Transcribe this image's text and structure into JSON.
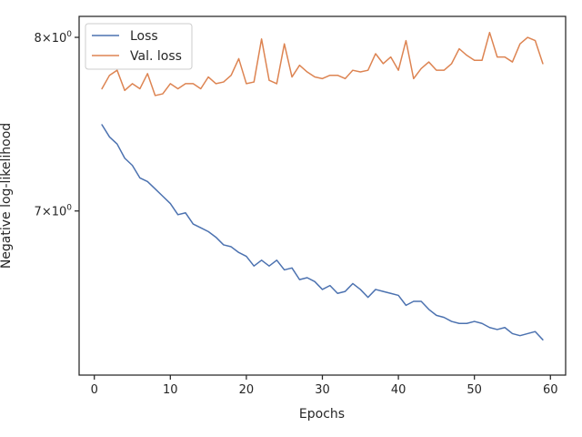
{
  "chart_data": {
    "type": "line",
    "title": "",
    "xlabel": "Epochs",
    "ylabel": "Negative log-likelihood",
    "xlim": [
      -2,
      62
    ],
    "ylim": [
      6.17,
      8.13
    ],
    "y_scale": "log",
    "x_ticks": [
      0,
      10,
      20,
      30,
      40,
      50,
      60
    ],
    "y_ticks": [
      {
        "value": 7,
        "label_base": "7×10",
        "label_exp": "0"
      },
      {
        "value": 8,
        "label_base": "8×10",
        "label_exp": "0"
      }
    ],
    "legend": {
      "position": "top-left"
    },
    "grid": false,
    "x": [
      1,
      2,
      3,
      4,
      5,
      6,
      7,
      8,
      9,
      10,
      11,
      12,
      13,
      14,
      15,
      16,
      17,
      18,
      19,
      20,
      21,
      22,
      23,
      24,
      25,
      26,
      27,
      28,
      29,
      30,
      31,
      32,
      33,
      34,
      35,
      36,
      37,
      38,
      39,
      40,
      41,
      42,
      43,
      44,
      45,
      46,
      47,
      48,
      49,
      50,
      51,
      52,
      53,
      54,
      55,
      56,
      57,
      58,
      59
    ],
    "series": [
      {
        "name": "Loss",
        "color": "#4c72b0",
        "values": [
          7.48,
          7.41,
          7.37,
          7.29,
          7.25,
          7.18,
          7.16,
          7.12,
          7.08,
          7.04,
          6.98,
          6.99,
          6.93,
          6.91,
          6.89,
          6.86,
          6.82,
          6.81,
          6.78,
          6.76,
          6.71,
          6.74,
          6.71,
          6.74,
          6.69,
          6.7,
          6.64,
          6.65,
          6.63,
          6.59,
          6.61,
          6.57,
          6.58,
          6.62,
          6.59,
          6.55,
          6.59,
          6.58,
          6.57,
          6.56,
          6.51,
          6.53,
          6.53,
          6.49,
          6.46,
          6.45,
          6.43,
          6.42,
          6.42,
          6.43,
          6.42,
          6.4,
          6.39,
          6.4,
          6.37,
          6.36,
          6.37,
          6.38,
          6.34
        ]
      },
      {
        "name": "Val. loss",
        "color": "#dd8452",
        "values": [
          7.69,
          7.77,
          7.8,
          7.68,
          7.72,
          7.69,
          7.78,
          7.65,
          7.66,
          7.72,
          7.69,
          7.72,
          7.72,
          7.69,
          7.76,
          7.72,
          7.73,
          7.77,
          7.87,
          7.72,
          7.73,
          7.99,
          7.74,
          7.72,
          7.96,
          7.76,
          7.83,
          7.79,
          7.76,
          7.75,
          7.77,
          7.77,
          7.75,
          7.8,
          7.79,
          7.8,
          7.9,
          7.84,
          7.88,
          7.8,
          7.98,
          7.75,
          7.81,
          7.85,
          7.8,
          7.8,
          7.84,
          7.93,
          7.89,
          7.86,
          7.86,
          8.03,
          7.88,
          7.88,
          7.85,
          7.96,
          8.0,
          7.98,
          7.84
        ]
      }
    ]
  }
}
